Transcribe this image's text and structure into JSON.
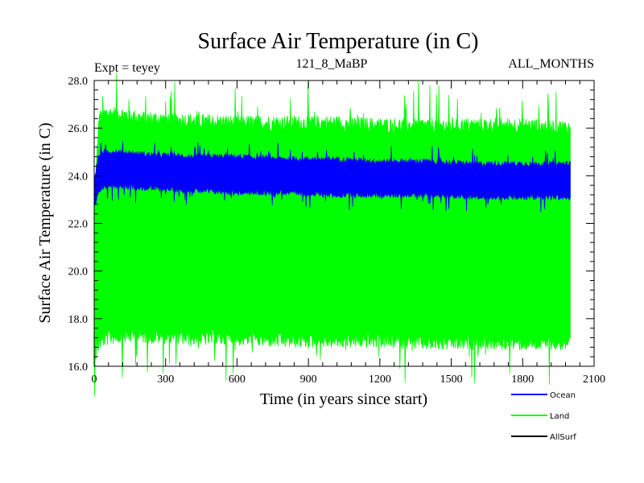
{
  "chart_data": {
    "type": "area",
    "title": "Surface Air Temperature (in C)",
    "subtitle_left": "Expt = teyey",
    "subtitle_center": "121_8_MaBP",
    "subtitle_right": "ALL_MONTHS",
    "xlabel": "Time (in years since start)",
    "ylabel": "Surface Air Temperature (in C)",
    "xlim": [
      0,
      2100
    ],
    "ylim": [
      16.0,
      28.0
    ],
    "xticks": [
      0,
      300,
      600,
      900,
      1200,
      1500,
      1800,
      2100
    ],
    "xtick_labels": [
      "0",
      "300",
      "600",
      "900",
      "1200",
      "1500",
      "1800",
      "2100"
    ],
    "yticks": [
      16.0,
      18.0,
      20.0,
      22.0,
      24.0,
      26.0,
      28.0
    ],
    "ytick_labels": [
      "16.0",
      "18.0",
      "20.0",
      "22.0",
      "24.0",
      "26.0",
      "28.0"
    ],
    "x_range": [
      0,
      2000
    ],
    "series": [
      {
        "name": "Land",
        "color": "#00ff00",
        "x": [
          0,
          20,
          50,
          100,
          200,
          400,
          600,
          800,
          1000,
          1200,
          1400,
          1600,
          1800,
          2000
        ],
        "upper": [
          22.6,
          26.4,
          26.6,
          26.6,
          26.4,
          26.3,
          26.2,
          26.2,
          26.2,
          26.1,
          26.1,
          26.1,
          26.1,
          26.0
        ],
        "lower": [
          16.4,
          17.0,
          17.2,
          17.3,
          17.3,
          17.2,
          17.2,
          17.1,
          17.1,
          17.1,
          17.0,
          17.0,
          17.0,
          17.0
        ]
      },
      {
        "name": "Ocean",
        "color": "#0000ff",
        "x": [
          0,
          15,
          30,
          60,
          100,
          200,
          400,
          600,
          800,
          1000,
          1200,
          1400,
          1600,
          1800,
          2000
        ],
        "upper": [
          23.8,
          24.7,
          25.0,
          25.0,
          25.0,
          24.9,
          24.8,
          24.8,
          24.7,
          24.7,
          24.6,
          24.6,
          24.5,
          24.5,
          24.5
        ],
        "lower": [
          22.6,
          23.2,
          23.5,
          23.6,
          23.6,
          23.5,
          23.4,
          23.3,
          23.3,
          23.2,
          23.2,
          23.2,
          23.1,
          23.1,
          23.1
        ]
      },
      {
        "name": "AllSurf",
        "color": "#000000",
        "x": [],
        "upper": [],
        "lower": []
      }
    ],
    "legend": [
      "Ocean",
      "Land",
      "AllSurf"
    ],
    "legend_position": "bottom-right"
  }
}
